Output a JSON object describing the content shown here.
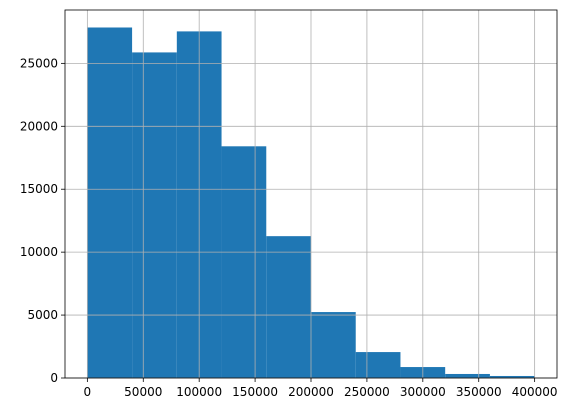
{
  "chart_data": {
    "type": "histogram",
    "bins": [
      0,
      40000,
      80000,
      120000,
      160000,
      200000,
      240000,
      280000,
      320000,
      360000,
      400000
    ],
    "values": [
      27850,
      25870,
      27540,
      18410,
      11270,
      5240,
      2060,
      870,
      320,
      160
    ],
    "color": "#1f77b4",
    "xlim": [
      -20000,
      420000
    ],
    "xticks": [
      0,
      50000,
      100000,
      150000,
      200000,
      250000,
      300000,
      350000,
      400000
    ],
    "ylim": [
      0,
      29240
    ],
    "yticks": [
      0,
      5000,
      10000,
      15000,
      20000,
      25000
    ],
    "grid": true
  }
}
